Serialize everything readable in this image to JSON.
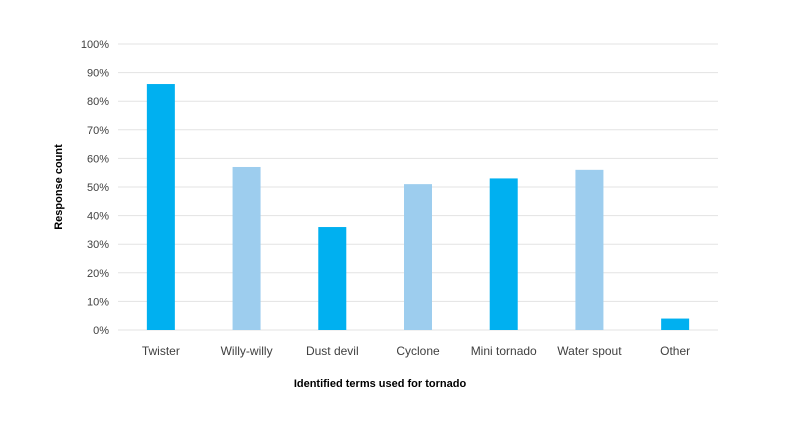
{
  "chart_data": {
    "type": "bar",
    "categories": [
      "Twister",
      "Willy-willy",
      "Dust devil",
      "Cyclone",
      "Mini tornado",
      "Water spout",
      "Other"
    ],
    "values": [
      86,
      57,
      36,
      51,
      53,
      56,
      4
    ],
    "bar_colors": [
      "#00b0f0",
      "#9dcdee",
      "#00b0f0",
      "#9dcdee",
      "#00b0f0",
      "#9dcdee",
      "#00b0f0"
    ],
    "xlabel": "Identified terms used for tornado",
    "ylabel": "Response count",
    "ylim": [
      0,
      100
    ],
    "yticks": [
      "0%",
      "10%",
      "20%",
      "30%",
      "40%",
      "50%",
      "60%",
      "70%",
      "80%",
      "90%",
      "100%"
    ],
    "grid": true,
    "legend": "none"
  }
}
